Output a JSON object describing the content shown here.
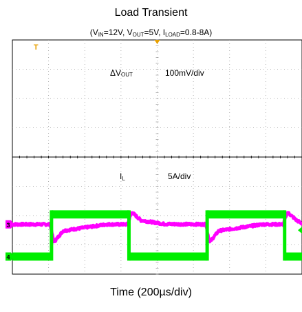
{
  "chart_data": {
    "type": "line",
    "title": "Load Transient",
    "subtitle": {
      "prefix": "(V",
      "vin_sub": "IN",
      "vin_val": "=12V, V",
      "vout_sub": "OUT",
      "vout_val": "=5V, I",
      "iload_sub": "LOAD",
      "iload_val": "=0.8-8A)"
    },
    "xlabel": "Time (200µs/div)",
    "divisions": {
      "x": 8,
      "y": 8
    },
    "trigger_marker": "T",
    "series": [
      {
        "channel": "3",
        "color": "#ff00ff",
        "label_main": "ΔV",
        "label_sub": "OUT",
        "scale": "100mV/div",
        "baseline_div": 1.7,
        "points": [
          [
            0.0,
            0.0
          ],
          [
            1.04,
            0.0
          ],
          [
            1.15,
            -1.1
          ],
          [
            1.4,
            -0.4
          ],
          [
            2.6,
            0.0
          ],
          [
            3.18,
            0.0
          ],
          [
            3.3,
            0.75
          ],
          [
            3.55,
            0.25
          ],
          [
            4.2,
            0.02
          ],
          [
            5.34,
            0.0
          ],
          [
            5.45,
            -1.1
          ],
          [
            5.7,
            -0.4
          ],
          [
            6.9,
            0.0
          ],
          [
            7.48,
            0.0
          ],
          [
            7.6,
            0.75
          ],
          [
            7.85,
            0.25
          ],
          [
            8.0,
            0.05
          ]
        ]
      },
      {
        "channel": "4",
        "color": "#00ee00",
        "label_main": "I",
        "label_sub": "L",
        "scale": "5A/div",
        "baseline_div": 0.6,
        "low_amps": 0.8,
        "high_amps": 8,
        "edges_div": [
          1.08,
          3.22,
          5.38,
          7.52
        ],
        "start_level": "low"
      }
    ]
  }
}
